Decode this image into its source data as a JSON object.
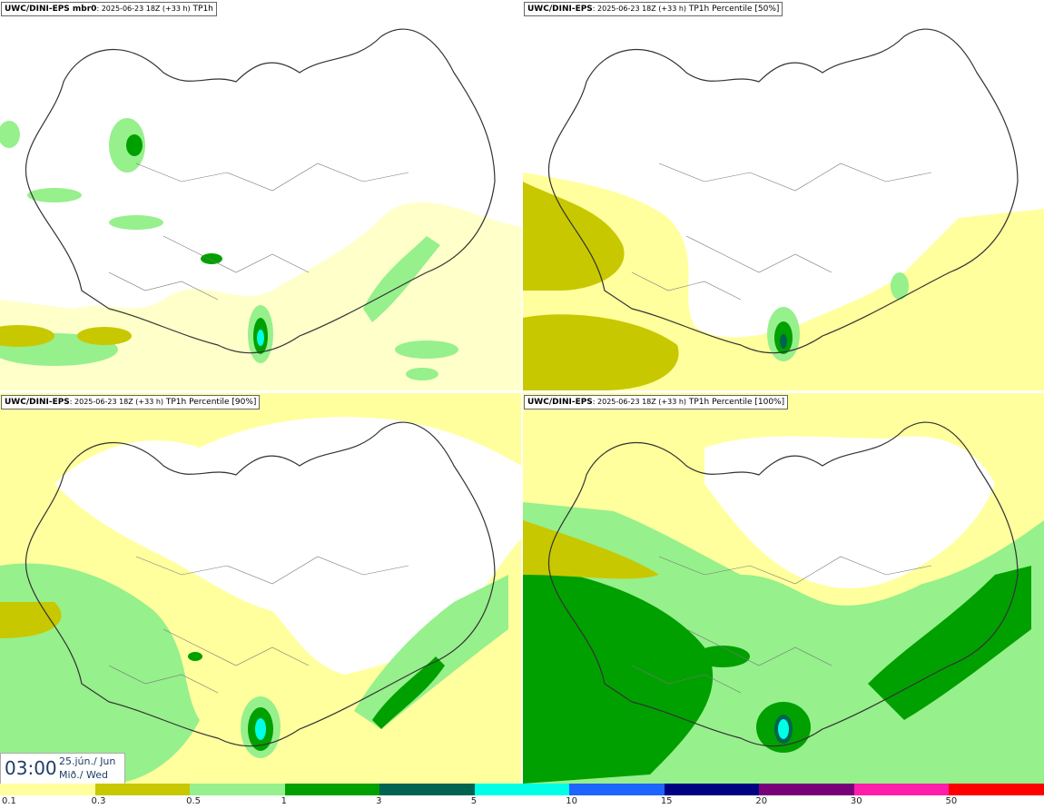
{
  "panels": [
    {
      "model": "UWC/DINI-EPS mbr0",
      "run": ": 2025-06-23 18Z (+33 h)",
      "field": " TP1h"
    },
    {
      "model": "UWC/DINI-EPS",
      "run": ": 2025-06-23 18Z (+33 h)",
      "field": " TP1h Percentile [50%]"
    },
    {
      "model": "UWC/DINI-EPS",
      "run": ": 2025-06-23 18Z (+33 h)",
      "field": " TP1h Percentile [90%]"
    },
    {
      "model": "UWC/DINI-EPS",
      "run": ": 2025-06-23 18Z (+33 h)",
      "field": " TP1h Percentile [100%]"
    }
  ],
  "time": {
    "clock": "03:00",
    "date": "25.jún./ Jun",
    "weekday": "Mið./ Wed"
  },
  "legend": {
    "colors": [
      "#ffff9e",
      "#c8c800",
      "#96f08c",
      "#00a000",
      "#006450",
      "#00ffe6",
      "#1e64ff",
      "#000080",
      "#780078",
      "#ff1eaa",
      "#ff0000"
    ],
    "labels": [
      "0.1",
      "0.3",
      "0.5",
      "1",
      "3",
      "5",
      "10",
      "15",
      "20",
      "30",
      "50"
    ]
  },
  "map_colors": {
    "light_yellow": "#ffff9e",
    "olive": "#c8c800",
    "light_green": "#96f08c",
    "green": "#00a000",
    "dark_green": "#006450",
    "cyan": "#00ffe6",
    "coast": "#333333"
  }
}
